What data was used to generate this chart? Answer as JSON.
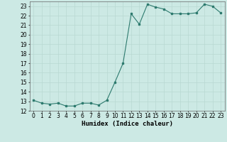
{
  "x": [
    0,
    1,
    2,
    3,
    4,
    5,
    6,
    7,
    8,
    9,
    10,
    11,
    12,
    13,
    14,
    15,
    16,
    17,
    18,
    19,
    20,
    21,
    22,
    23
  ],
  "y": [
    13.1,
    12.8,
    12.7,
    12.8,
    12.5,
    12.5,
    12.8,
    12.8,
    12.6,
    13.1,
    15.0,
    17.0,
    22.2,
    21.1,
    23.2,
    22.9,
    22.7,
    22.2,
    22.2,
    22.2,
    22.3,
    23.2,
    23.0,
    22.3
  ],
  "line_color": "#2d7a6e",
  "marker": "s",
  "markersize": 1.8,
  "bg_color": "#cce9e4",
  "grid_color": "#b8d8d2",
  "xlabel": "Humidex (Indice chaleur)",
  "xlabel_fontsize": 6.5,
  "tick_fontsize": 5.5,
  "ylim": [
    12,
    23.5
  ],
  "xlim": [
    -0.5,
    23.5
  ],
  "yticks": [
    12,
    13,
    14,
    15,
    16,
    17,
    18,
    19,
    20,
    21,
    22,
    23
  ],
  "xticks": [
    0,
    1,
    2,
    3,
    4,
    5,
    6,
    7,
    8,
    9,
    10,
    11,
    12,
    13,
    14,
    15,
    16,
    17,
    18,
    19,
    20,
    21,
    22,
    23
  ]
}
